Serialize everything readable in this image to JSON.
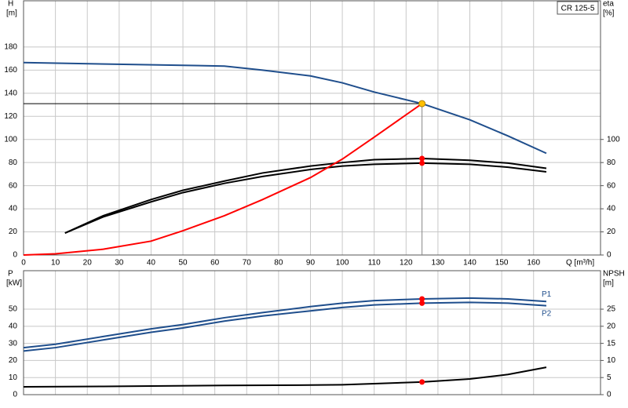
{
  "chart_data": [
    {
      "type": "line",
      "label": "CR 125-5",
      "ylabel": "H",
      "yunit": "[m]",
      "y2label": "eta",
      "y2unit": "[%]",
      "xlabel": "Q [m³/h]",
      "xlim": [
        0,
        181
      ],
      "xticks": [
        0,
        10,
        20,
        30,
        40,
        50,
        60,
        70,
        80,
        90,
        100,
        110,
        120,
        130,
        140,
        150,
        160
      ],
      "ylim": [
        0,
        220
      ],
      "yticks": [
        0,
        20,
        40,
        60,
        80,
        100,
        120,
        140,
        160,
        180
      ],
      "y2lim": [
        0,
        220
      ],
      "y2ticks": [
        0,
        20,
        40,
        60,
        80,
        100
      ],
      "grid": true,
      "series": [
        {
          "color": "#1f4e8c",
          "x": [
            0,
            63,
            75,
            90,
            100,
            110,
            125,
            140,
            152,
            164
          ],
          "values": [
            166.5,
            163.5,
            160,
            155,
            149,
            141,
            131,
            117,
            103,
            88
          ]
        },
        {
          "color": "#000000",
          "axis": "y2",
          "x": [
            13,
            25,
            40,
            50,
            63,
            75,
            90,
            100,
            110,
            125,
            140,
            152,
            164
          ],
          "values": [
            19,
            34,
            48,
            56,
            64,
            71,
            77,
            80,
            82.5,
            83.5,
            82,
            79.5,
            75
          ]
        },
        {
          "color": "#000000",
          "axis": "y2",
          "x": [
            13,
            25,
            40,
            50,
            63,
            75,
            90,
            100,
            110,
            125,
            140,
            152,
            164
          ],
          "values": [
            19,
            33,
            46,
            54,
            62,
            68,
            74,
            77,
            78.5,
            79.5,
            78.5,
            76,
            72
          ]
        },
        {
          "color": "#ff0000",
          "x": [
            0,
            10,
            25,
            40,
            50,
            63,
            75,
            90,
            100,
            110,
            125
          ],
          "values": [
            0,
            1,
            5,
            12,
            21,
            34,
            48,
            67,
            83,
            102,
            131
          ]
        }
      ],
      "operating_point": {
        "x": 125,
        "y": 131,
        "color": "#ffc000"
      },
      "points": [
        {
          "x": 125,
          "y": 83.5,
          "axis": "y2",
          "color": "#ff0000"
        },
        {
          "x": 125,
          "y": 79.5,
          "axis": "y2",
          "color": "#ff0000"
        }
      ]
    },
    {
      "type": "line",
      "ylabel": "P",
      "yunit": "[kW]",
      "y2label": "NPSH",
      "y2unit": "[m]",
      "xlim": [
        0,
        181
      ],
      "ylim": [
        0,
        72.5
      ],
      "yticks": [
        0,
        10,
        20,
        30,
        40,
        50
      ],
      "y2lim": [
        0,
        36.25
      ],
      "y2ticks": [
        0,
        5,
        10,
        15,
        20,
        25
      ],
      "grid": true,
      "series": [
        {
          "name": "P1",
          "color": "#1f4e8c",
          "x": [
            0,
            10,
            25,
            40,
            50,
            63,
            75,
            90,
            100,
            110,
            125,
            140,
            152,
            164
          ],
          "values": [
            27.5,
            29.5,
            34,
            38.5,
            41,
            45,
            48,
            51.5,
            53.5,
            55,
            56,
            56.5,
            56,
            54.5
          ]
        },
        {
          "name": "P2",
          "color": "#1f4e8c",
          "x": [
            0,
            10,
            25,
            40,
            50,
            63,
            75,
            90,
            100,
            110,
            125,
            140,
            152,
            164
          ],
          "values": [
            25.5,
            27.5,
            32,
            36.5,
            39,
            43,
            46,
            49,
            51,
            52.5,
            53.5,
            54,
            53.5,
            52
          ]
        },
        {
          "color": "#000000",
          "axis": "y2",
          "x": [
            0,
            25,
            63,
            90,
            100,
            110,
            125,
            140,
            152,
            164
          ],
          "values": [
            2.3,
            2.4,
            2.7,
            2.8,
            2.9,
            3.2,
            3.7,
            4.6,
            5.9,
            8.0
          ]
        }
      ],
      "points": [
        {
          "x": 125,
          "y": 56,
          "color": "#ff0000"
        },
        {
          "x": 125,
          "y": 53.5,
          "color": "#ff0000"
        },
        {
          "x": 125,
          "y": 3.7,
          "axis": "y2",
          "color": "#ff0000"
        }
      ]
    }
  ]
}
